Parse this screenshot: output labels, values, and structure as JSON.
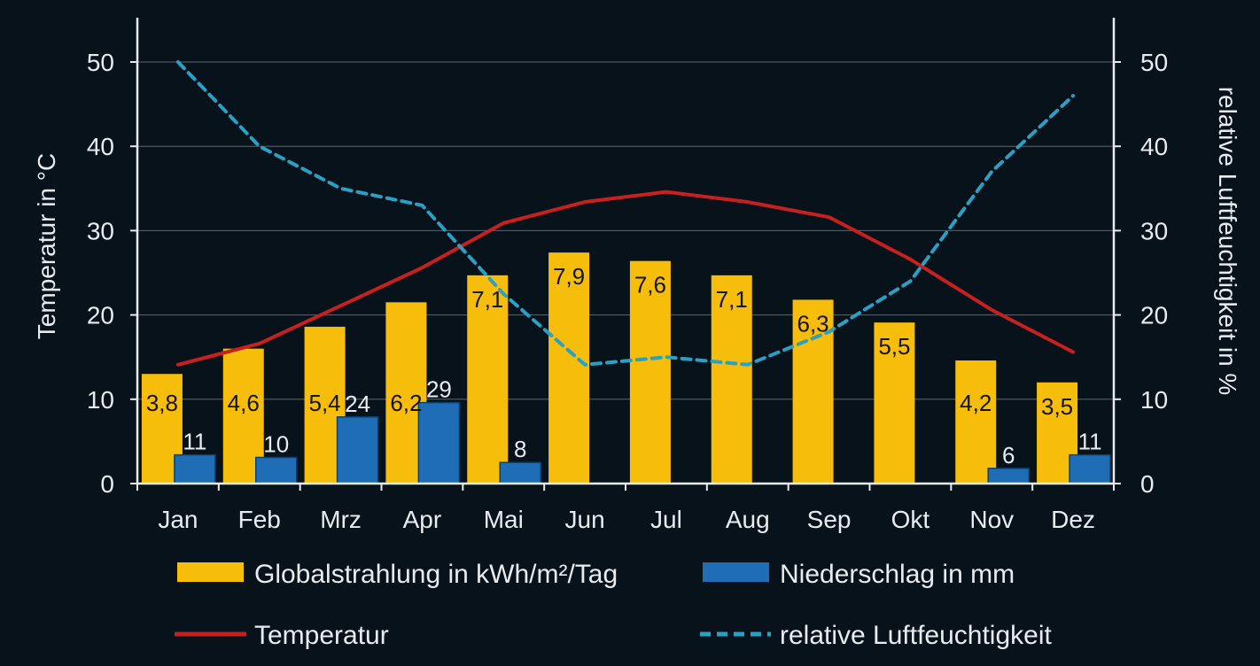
{
  "chart_data": {
    "type": "bar",
    "categories": [
      "Jan",
      "Feb",
      "Mrz",
      "Apr",
      "Mai",
      "Jun",
      "Jul",
      "Aug",
      "Sep",
      "Okt",
      "Nov",
      "Dez"
    ],
    "y_left_label": "Temperatur in °C",
    "y_right_label": "relative Luftfeuchtigkeit in %",
    "ylim_left": [
      0,
      50
    ],
    "ylim_right": [
      0,
      50
    ],
    "yticks_left": [
      "0",
      "10",
      "20",
      "30",
      "40",
      "50"
    ],
    "yticks_right": [
      "0",
      "10",
      "20",
      "30",
      "40",
      "50"
    ],
    "grid": true,
    "series": [
      {
        "name": "Globalstrahlung in kWh/m²/Tag",
        "kind": "bar",
        "color": "#f6bd0a",
        "plot_values": [
          13.0,
          16.0,
          18.6,
          21.5,
          24.7,
          27.4,
          26.4,
          24.7,
          21.8,
          19.1,
          14.6,
          12.0
        ],
        "labels": [
          "3,8",
          "4,6",
          "5,4",
          "6,2",
          "7,1",
          "7,9",
          "7,6",
          "7,1",
          "6,3",
          "5,5",
          "4,2",
          "3,5"
        ]
      },
      {
        "name": "Niederschlag in mm",
        "kind": "bar",
        "color": "#1f6eb5",
        "plot_values": [
          3.4,
          3.1,
          7.9,
          9.6,
          2.5,
          0,
          0,
          0,
          0,
          0,
          1.8,
          3.4
        ],
        "labels": [
          "11",
          "10",
          "24",
          "29",
          "8",
          "",
          "",
          "",
          "",
          "",
          "6",
          "11"
        ]
      },
      {
        "name": "Temperatur",
        "kind": "line",
        "color": "#c8201f",
        "values": [
          14.1,
          16.6,
          21.1,
          25.6,
          30.9,
          33.4,
          34.6,
          33.4,
          31.6,
          26.6,
          20.6,
          15.6
        ]
      },
      {
        "name": "relative Luftfeuchtigkeit",
        "kind": "line",
        "dashed": true,
        "color": "#2aa1c4",
        "values": [
          50.0,
          40.0,
          35.0,
          33.0,
          22.5,
          14.1,
          15.0,
          14.1,
          18.0,
          24.0,
          37.0,
          46.0
        ]
      }
    ]
  }
}
